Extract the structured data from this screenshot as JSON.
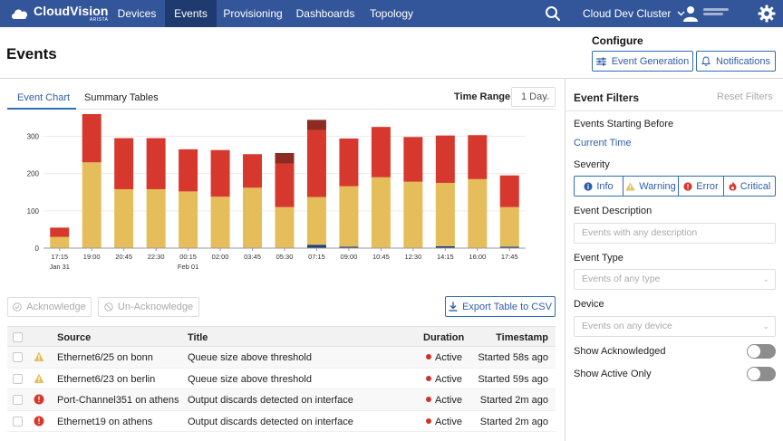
{
  "nav": {
    "brand": "CloudVision",
    "brand_sub": "ARISTA",
    "items": [
      "Devices",
      "Events",
      "Provisioning",
      "Dashboards",
      "Topology"
    ],
    "active": "Events",
    "cluster": "Cloud Dev Cluster"
  },
  "header": {
    "title": "Events",
    "configure_label": "Configure",
    "event_generation_label": "Event Generation",
    "notifications_label": "Notifications"
  },
  "tabs": {
    "chart": "Event Chart",
    "summary": "Summary Tables"
  },
  "time_range": {
    "label": "Time Range",
    "value": "1 Day"
  },
  "chart_data": {
    "type": "bar",
    "stacked": true,
    "yticks": [
      0,
      100,
      200,
      300
    ],
    "ylim": [
      0,
      340
    ],
    "categories": [
      "17:15",
      "19:00",
      "20:45",
      "22:30",
      "00:15",
      "02:00",
      "03:45",
      "05:30",
      "07:15",
      "09:00",
      "10:45",
      "12:30",
      "14:15",
      "16:00",
      "17:45"
    ],
    "sublabels": [
      "Jan 31",
      "",
      "",
      "",
      "Feb 01",
      "",
      "",
      "",
      "",
      "",
      "",
      "",
      "",
      "",
      ""
    ],
    "series": [
      {
        "color": "#1f3f7a",
        "values": [
          0,
          0,
          0,
          0,
          0,
          0,
          0,
          0,
          9,
          4,
          0,
          0,
          5,
          0,
          4
        ]
      },
      {
        "color": "#e5bd5a",
        "values": [
          30,
          230,
          158,
          158,
          152,
          138,
          162,
          110,
          128,
          162,
          190,
          178,
          170,
          185,
          106
        ]
      },
      {
        "color": "#d7382d",
        "values": [
          25,
          140,
          137,
          137,
          113,
          125,
          90,
          117,
          180,
          128,
          135,
          120,
          127,
          118,
          85
        ]
      },
      {
        "color": "#8b2b22",
        "values": [
          0,
          0,
          0,
          0,
          0,
          0,
          0,
          28,
          27,
          0,
          0,
          0,
          0,
          0,
          0
        ]
      }
    ]
  },
  "actions": {
    "acknowledge": "Acknowledge",
    "unacknowledge": "Un-Acknowledge",
    "export": "Export Table to CSV"
  },
  "table": {
    "headers": [
      "Source",
      "Title",
      "Duration",
      "Timestamp"
    ],
    "rows": [
      {
        "severity": "warning",
        "source": "Ethernet6/25 on bonn",
        "title": "Queue size above threshold",
        "duration": "Active",
        "timestamp": "Started 58s ago"
      },
      {
        "severity": "warning",
        "source": "Ethernet6/23 on berlin",
        "title": "Queue size above threshold",
        "duration": "Active",
        "timestamp": "Started 59s ago"
      },
      {
        "severity": "error",
        "source": "Port-Channel351 on athens",
        "title": "Output discards detected on interface",
        "duration": "Active",
        "timestamp": "Started 2m ago"
      },
      {
        "severity": "error",
        "source": "Ethernet19 on athens",
        "title": "Output discards detected on interface",
        "duration": "Active",
        "timestamp": "Started 2m ago"
      }
    ]
  },
  "filters": {
    "title": "Event Filters",
    "reset": "Reset Filters",
    "starting_before_label": "Events Starting Before",
    "starting_before_value": "Current Time",
    "severity_label": "Severity",
    "severity": [
      "Info",
      "Warning",
      "Error",
      "Critical"
    ],
    "description_label": "Event Description",
    "description_placeholder": "Events with any description",
    "type_label": "Event Type",
    "type_placeholder": "Events of any type",
    "device_label": "Device",
    "device_placeholder": "Events on any device",
    "show_ack_label": "Show Acknowledged",
    "show_active_label": "Show Active Only"
  },
  "colors": {
    "nav_bg": "#33569a",
    "nav_active": "#1f3a6e",
    "accent": "#2f6db5",
    "warning": "#e5bd5a",
    "error": "#d7382d",
    "critical": "#8b2b22"
  }
}
